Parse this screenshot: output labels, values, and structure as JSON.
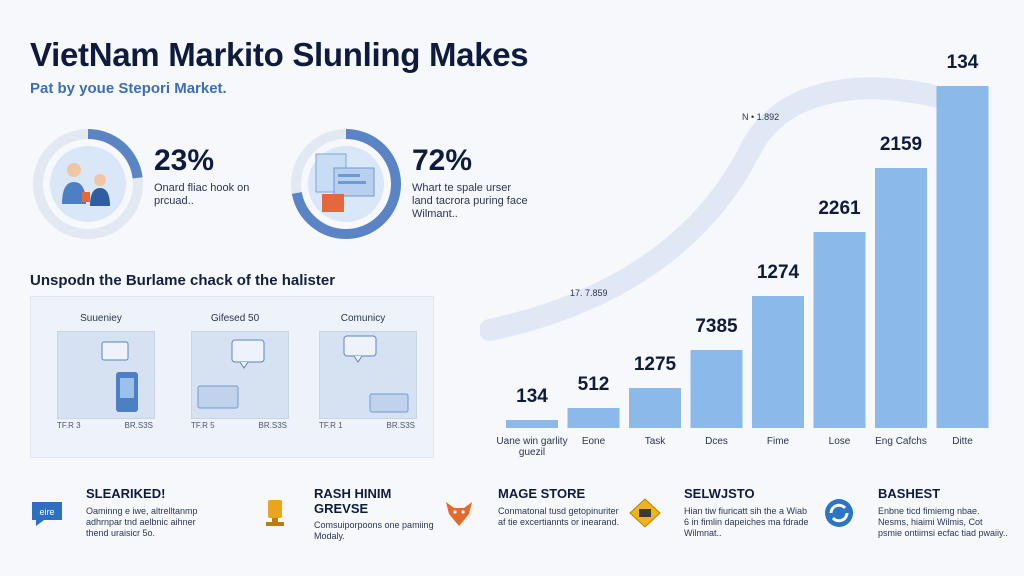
{
  "header": {
    "title": "VietNam Markito Slunling Makes",
    "subtitle": "Pat by youe Stepori Market."
  },
  "stats": [
    {
      "value": "23%",
      "description": "Onard fliac hook on prcuad..",
      "ring_fraction": 0.23,
      "color": "#5b84c4"
    },
    {
      "value": "72%",
      "description": "Whart te spale urser land tacrora puring face Wilmant..",
      "ring_fraction": 0.72,
      "color": "#5b84c4"
    }
  ],
  "section": {
    "heading": "Unspodn the Burlame chack of the halister",
    "cards": [
      {
        "label": "Suueniey",
        "foot_left": "TF.R 3",
        "foot_right": "BR.S3S"
      },
      {
        "label": "Gifesed 50",
        "foot_left": "TF.R 5",
        "foot_right": "BR.S3S"
      },
      {
        "label": "Comunicy",
        "foot_left": "TF.R 1",
        "foot_right": "BR.S3S"
      }
    ]
  },
  "chart_data": {
    "type": "bar",
    "categories": [
      "Uane win garlity guezil",
      "Eone",
      "Task",
      "Dces",
      "Fime",
      "Lose",
      "Eng Cafchs",
      "Ditte"
    ],
    "values": [
      134,
      512,
      1275,
      7385,
      1274,
      2261,
      2159,
      134
    ],
    "data_labels": [
      "134",
      "512",
      "1275",
      "7385",
      "1274",
      "2261",
      "2159",
      "134"
    ],
    "annotations": [
      "N • 1.892",
      "17. 7.859"
    ],
    "bar_color": "#8bb9ea",
    "title": "",
    "xlabel": "",
    "ylabel": ""
  },
  "features": [
    {
      "name": "SLEARIKED!",
      "description": "Oaminng e iwe, altrelltanmp adhrnpar tnd aelbnic aihner thend uraisicr 5o.",
      "icon": "speech-bubble-icon",
      "icon_text": "eire",
      "color": "#2e6fbf"
    },
    {
      "name": "RASH HINIM GREVSE",
      "description": "Comsuiporpoons one pamiing Modaly.",
      "icon": "trophy-icon",
      "color": "#e9a51c"
    },
    {
      "name": "MAGE STORE",
      "description": "Conmatonal tusd getopinuriter af tie excertiannts or inearand.",
      "icon": "fox-icon",
      "color": "#e36a2b"
    },
    {
      "name": "SELWJSTO",
      "description": "Hian tiw fiuricatt sih the a Wiab 6 in fimlin dapeiches ma fdrade Wilmnat..",
      "icon": "diamond-sign-icon",
      "color": "#f0b31d"
    },
    {
      "name": "BASHEST",
      "description": "Enbne ticd fimiemg nbae. Nesms, hiaimi Wilmis, Cot psmie ontiimsi ecfac tiad pwaiiy..",
      "icon": "circle-arrows-icon",
      "color": "#2e74c4"
    }
  ]
}
